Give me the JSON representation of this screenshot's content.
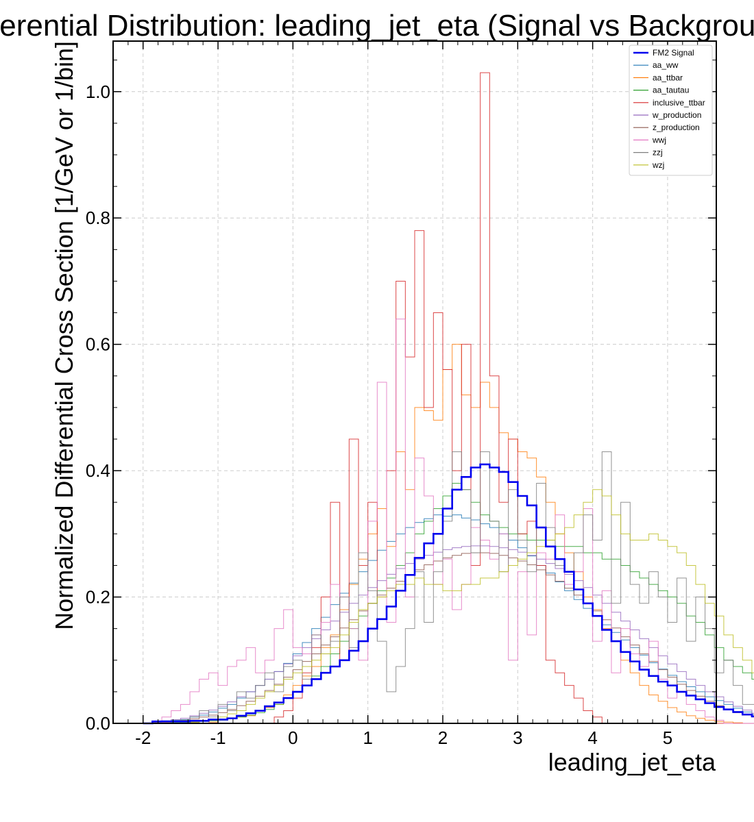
{
  "chart_data": {
    "type": "histogram-step",
    "title": "Differential Distribution: leading_jet_eta (Signal vs Background)",
    "xlabel": "leading_jet_eta",
    "ylabel": "Normalized Differential Cross Section [1/GeV or 1/bin]",
    "xlim": [
      -2.4,
      5.65
    ],
    "ylim": [
      0,
      1.08
    ],
    "xticks": [
      "-2",
      "-1",
      "0",
      "1",
      "2",
      "3",
      "4",
      "5"
    ],
    "yticks": [
      "0.0",
      "0.2",
      "0.4",
      "0.6",
      "0.8",
      "1.0"
    ],
    "grid": true,
    "legend_position": "top-right",
    "bin_start": -2.0,
    "bin_width": 0.125,
    "series": [
      {
        "name": "FM2 Signal",
        "color": "#0000ee",
        "width": 2.6,
        "values": [
          0,
          0.003,
          0.003,
          0.003,
          0.003,
          0.004,
          0.004,
          0.006,
          0.006,
          0.008,
          0.012,
          0.016,
          0.02,
          0.027,
          0.033,
          0.04,
          0.05,
          0.06,
          0.07,
          0.08,
          0.09,
          0.1,
          0.115,
          0.13,
          0.15,
          0.165,
          0.185,
          0.21,
          0.235,
          0.262,
          0.285,
          0.3,
          0.34,
          0.37,
          0.39,
          0.405,
          0.41,
          0.405,
          0.398,
          0.382,
          0.36,
          0.345,
          0.31,
          0.28,
          0.26,
          0.24,
          0.212,
          0.19,
          0.17,
          0.148,
          0.13,
          0.113,
          0.098,
          0.085,
          0.075,
          0.066,
          0.06,
          0.05,
          0.044,
          0.038,
          0.032,
          0.026,
          0.022,
          0.018,
          0.014,
          0.011,
          0.008,
          0.006,
          0.004,
          0.003,
          0.002,
          0.001
        ]
      },
      {
        "name": "aa_ww",
        "color": "#1f77b4",
        "width": 1,
        "values": [
          0,
          0.002,
          0.004,
          0.005,
          0.006,
          0.01,
          0.013,
          0.018,
          0.024,
          0.03,
          0.04,
          0.05,
          0.06,
          0.07,
          0.082,
          0.095,
          0.11,
          0.128,
          0.15,
          0.168,
          0.188,
          0.206,
          0.222,
          0.24,
          0.258,
          0.274,
          0.288,
          0.3,
          0.31,
          0.318,
          0.324,
          0.33,
          0.328,
          0.33,
          0.325,
          0.322,
          0.316,
          0.31,
          0.3,
          0.29,
          0.278,
          0.265,
          0.25,
          0.238,
          0.224,
          0.21,
          0.196,
          0.182,
          0.17,
          0.156,
          0.144,
          0.132,
          0.12,
          0.108,
          0.096,
          0.086,
          0.076,
          0.066,
          0.058,
          0.05,
          0.042,
          0.036,
          0.03,
          0.024,
          0.018,
          0.014,
          0.01,
          0.007,
          0.005,
          0.003,
          0.002,
          0.001
        ]
      },
      {
        "name": "aa_ttbar",
        "color": "#ff7f0e",
        "width": 1,
        "values": [
          0,
          0,
          0.001,
          0,
          0.002,
          0.001,
          0.004,
          0.002,
          0.006,
          0.008,
          0.01,
          0.012,
          0.02,
          0.025,
          0.03,
          0.045,
          0.06,
          0.075,
          0.09,
          0.12,
          0.14,
          0.18,
          0.22,
          0.26,
          0.3,
          0.34,
          0.28,
          0.43,
          0.37,
          0.5,
          0.495,
          0.48,
          0.56,
          0.6,
          0.52,
          0.5,
          0.54,
          0.5,
          0.46,
          0.45,
          0.43,
          0.42,
          0.39,
          0.35,
          0.3,
          0.27,
          0.24,
          0.2,
          0.18,
          0.15,
          0.13,
          0.1,
          0.08,
          0.06,
          0.045,
          0.035,
          0.025,
          0.018,
          0.012,
          0.008,
          0.005,
          0.003,
          0.002,
          0.001,
          0,
          0,
          0,
          0,
          0,
          0,
          0,
          0
        ]
      },
      {
        "name": "aa_tautau",
        "color": "#2ca02c",
        "width": 1,
        "values": [
          0,
          0,
          0,
          0.001,
          0.001,
          0.002,
          0.003,
          0.004,
          0.005,
          0.007,
          0.01,
          0.013,
          0.017,
          0.022,
          0.03,
          0.04,
          0.05,
          0.06,
          0.075,
          0.09,
          0.11,
          0.13,
          0.15,
          0.17,
          0.19,
          0.21,
          0.23,
          0.25,
          0.27,
          0.3,
          0.32,
          0.34,
          0.36,
          0.38,
          0.37,
          0.35,
          0.33,
          0.32,
          0.31,
          0.3,
          0.3,
          0.29,
          0.29,
          0.29,
          0.28,
          0.28,
          0.28,
          0.27,
          0.27,
          0.26,
          0.26,
          0.25,
          0.24,
          0.23,
          0.22,
          0.21,
          0.2,
          0.19,
          0.17,
          0.16,
          0.14,
          0.12,
          0.1,
          0.09,
          0.08,
          0.07,
          0.06,
          0.05,
          0.04,
          0.03,
          0.02,
          0.01
        ]
      },
      {
        "name": "inclusive_ttbar",
        "color": "#d62728",
        "width": 1,
        "values": [
          0,
          0,
          0,
          0,
          0,
          0,
          0,
          0,
          0,
          0,
          0,
          0,
          0,
          0,
          0.01,
          0.02,
          0.04,
          0.08,
          0.12,
          0.2,
          0.35,
          0.1,
          0.45,
          0.25,
          0.35,
          0.2,
          0.4,
          0.7,
          0.58,
          0.78,
          0.5,
          0.65,
          0.56,
          0.4,
          0.6,
          0.25,
          1.03,
          0.55,
          0.35,
          0.45,
          0.3,
          0.32,
          0.25,
          0.1,
          0.08,
          0.06,
          0.04,
          0.02,
          0.01,
          0,
          0,
          0,
          0,
          0,
          0,
          0,
          0,
          0,
          0,
          0,
          0,
          0,
          0,
          0,
          0,
          0,
          0,
          0,
          0,
          0,
          0,
          0
        ]
      },
      {
        "name": "w_production",
        "color": "#9467bd",
        "width": 1,
        "values": [
          0,
          0.002,
          0.003,
          0.006,
          0.008,
          0.012,
          0.016,
          0.021,
          0.027,
          0.034,
          0.042,
          0.05,
          0.06,
          0.07,
          0.082,
          0.094,
          0.107,
          0.12,
          0.134,
          0.148,
          0.162,
          0.176,
          0.19,
          0.203,
          0.215,
          0.226,
          0.236,
          0.245,
          0.253,
          0.26,
          0.266,
          0.271,
          0.275,
          0.278,
          0.28,
          0.281,
          0.281,
          0.28,
          0.278,
          0.275,
          0.271,
          0.266,
          0.26,
          0.253,
          0.245,
          0.236,
          0.226,
          0.215,
          0.203,
          0.19,
          0.176,
          0.162,
          0.148,
          0.134,
          0.12,
          0.107,
          0.094,
          0.082,
          0.07,
          0.06,
          0.05,
          0.042,
          0.034,
          0.027,
          0.021,
          0.016,
          0.012,
          0.008,
          0.006,
          0.004,
          0.002,
          0.001
        ]
      },
      {
        "name": "z_production",
        "color": "#8c564b",
        "width": 1,
        "values": [
          0,
          0.001,
          0.002,
          0.003,
          0.005,
          0.007,
          0.01,
          0.013,
          0.017,
          0.022,
          0.028,
          0.035,
          0.043,
          0.052,
          0.062,
          0.073,
          0.085,
          0.098,
          0.11,
          0.124,
          0.137,
          0.151,
          0.164,
          0.178,
          0.19,
          0.203,
          0.214,
          0.225,
          0.235,
          0.243,
          0.251,
          0.257,
          0.262,
          0.266,
          0.269,
          0.27,
          0.27,
          0.269,
          0.266,
          0.262,
          0.257,
          0.251,
          0.243,
          0.235,
          0.225,
          0.214,
          0.203,
          0.19,
          0.178,
          0.164,
          0.151,
          0.137,
          0.124,
          0.11,
          0.098,
          0.085,
          0.073,
          0.062,
          0.052,
          0.043,
          0.035,
          0.028,
          0.022,
          0.017,
          0.013,
          0.01,
          0.007,
          0.005,
          0.003,
          0.002,
          0.001,
          0
        ]
      },
      {
        "name": "wwj",
        "color": "#e377c2",
        "width": 1,
        "values": [
          0,
          0,
          0.01,
          0.02,
          0.03,
          0.05,
          0.07,
          0.08,
          0.06,
          0.09,
          0.1,
          0.12,
          0.08,
          0.1,
          0.15,
          0.18,
          0.12,
          0.11,
          0.14,
          0.16,
          0.22,
          0.2,
          0.15,
          0.1,
          0.32,
          0.54,
          0.16,
          0.64,
          0.2,
          0.42,
          0.36,
          0.22,
          0.26,
          0.18,
          0.22,
          0.31,
          0.29,
          0.26,
          0.3,
          0.1,
          0.24,
          0.14,
          0.27,
          0.26,
          0.33,
          0.22,
          0.24,
          0.34,
          0.13,
          0.21,
          0.08,
          0.15,
          0.11,
          0.09,
          0.13,
          0.07,
          0.04,
          0.05,
          0.03,
          0.02,
          0.01,
          0.005,
          0,
          0,
          0,
          0,
          0,
          0,
          0,
          0,
          0,
          0
        ]
      },
      {
        "name": "zzj",
        "color": "#7f7f7f",
        "width": 1,
        "values": [
          0,
          0,
          0,
          0,
          0.005,
          0.01,
          0.02,
          0.01,
          0.03,
          0.02,
          0.05,
          0.04,
          0.06,
          0.08,
          0.05,
          0.09,
          0.1,
          0.07,
          0.14,
          0.11,
          0.13,
          0.2,
          0.12,
          0.27,
          0.21,
          0.13,
          0.05,
          0.09,
          0.15,
          0.24,
          0.16,
          0.24,
          0.32,
          0.43,
          0.37,
          0.27,
          0.43,
          0.32,
          0.24,
          0.37,
          0.29,
          0.24,
          0.38,
          0.31,
          0.25,
          0.24,
          0.27,
          0.33,
          0.29,
          0.43,
          0.19,
          0.35,
          0.22,
          0.19,
          0.24,
          0.2,
          0.16,
          0.23,
          0.13,
          0.2,
          0.15,
          0.08,
          0.1,
          0.06,
          0.03,
          0.03,
          0.02,
          0.01,
          0.005,
          0,
          0,
          0
        ]
      },
      {
        "name": "wzj",
        "color": "#bcbd22",
        "width": 1,
        "values": [
          0,
          0,
          0,
          0,
          0,
          0.002,
          0.004,
          0.006,
          0.01,
          0.015,
          0.02,
          0.03,
          0.04,
          0.05,
          0.06,
          0.07,
          0.08,
          0.09,
          0.1,
          0.11,
          0.12,
          0.14,
          0.16,
          0.18,
          0.19,
          0.2,
          0.21,
          0.22,
          0.22,
          0.23,
          0.22,
          0.22,
          0.21,
          0.21,
          0.22,
          0.22,
          0.23,
          0.23,
          0.24,
          0.25,
          0.26,
          0.27,
          0.28,
          0.29,
          0.3,
          0.31,
          0.33,
          0.35,
          0.37,
          0.36,
          0.33,
          0.3,
          0.29,
          0.29,
          0.3,
          0.29,
          0.28,
          0.27,
          0.25,
          0.22,
          0.19,
          0.17,
          0.14,
          0.12,
          0.1,
          0.08,
          0.06,
          0.05,
          0.04,
          0.03,
          0.02,
          0.01
        ]
      }
    ]
  }
}
